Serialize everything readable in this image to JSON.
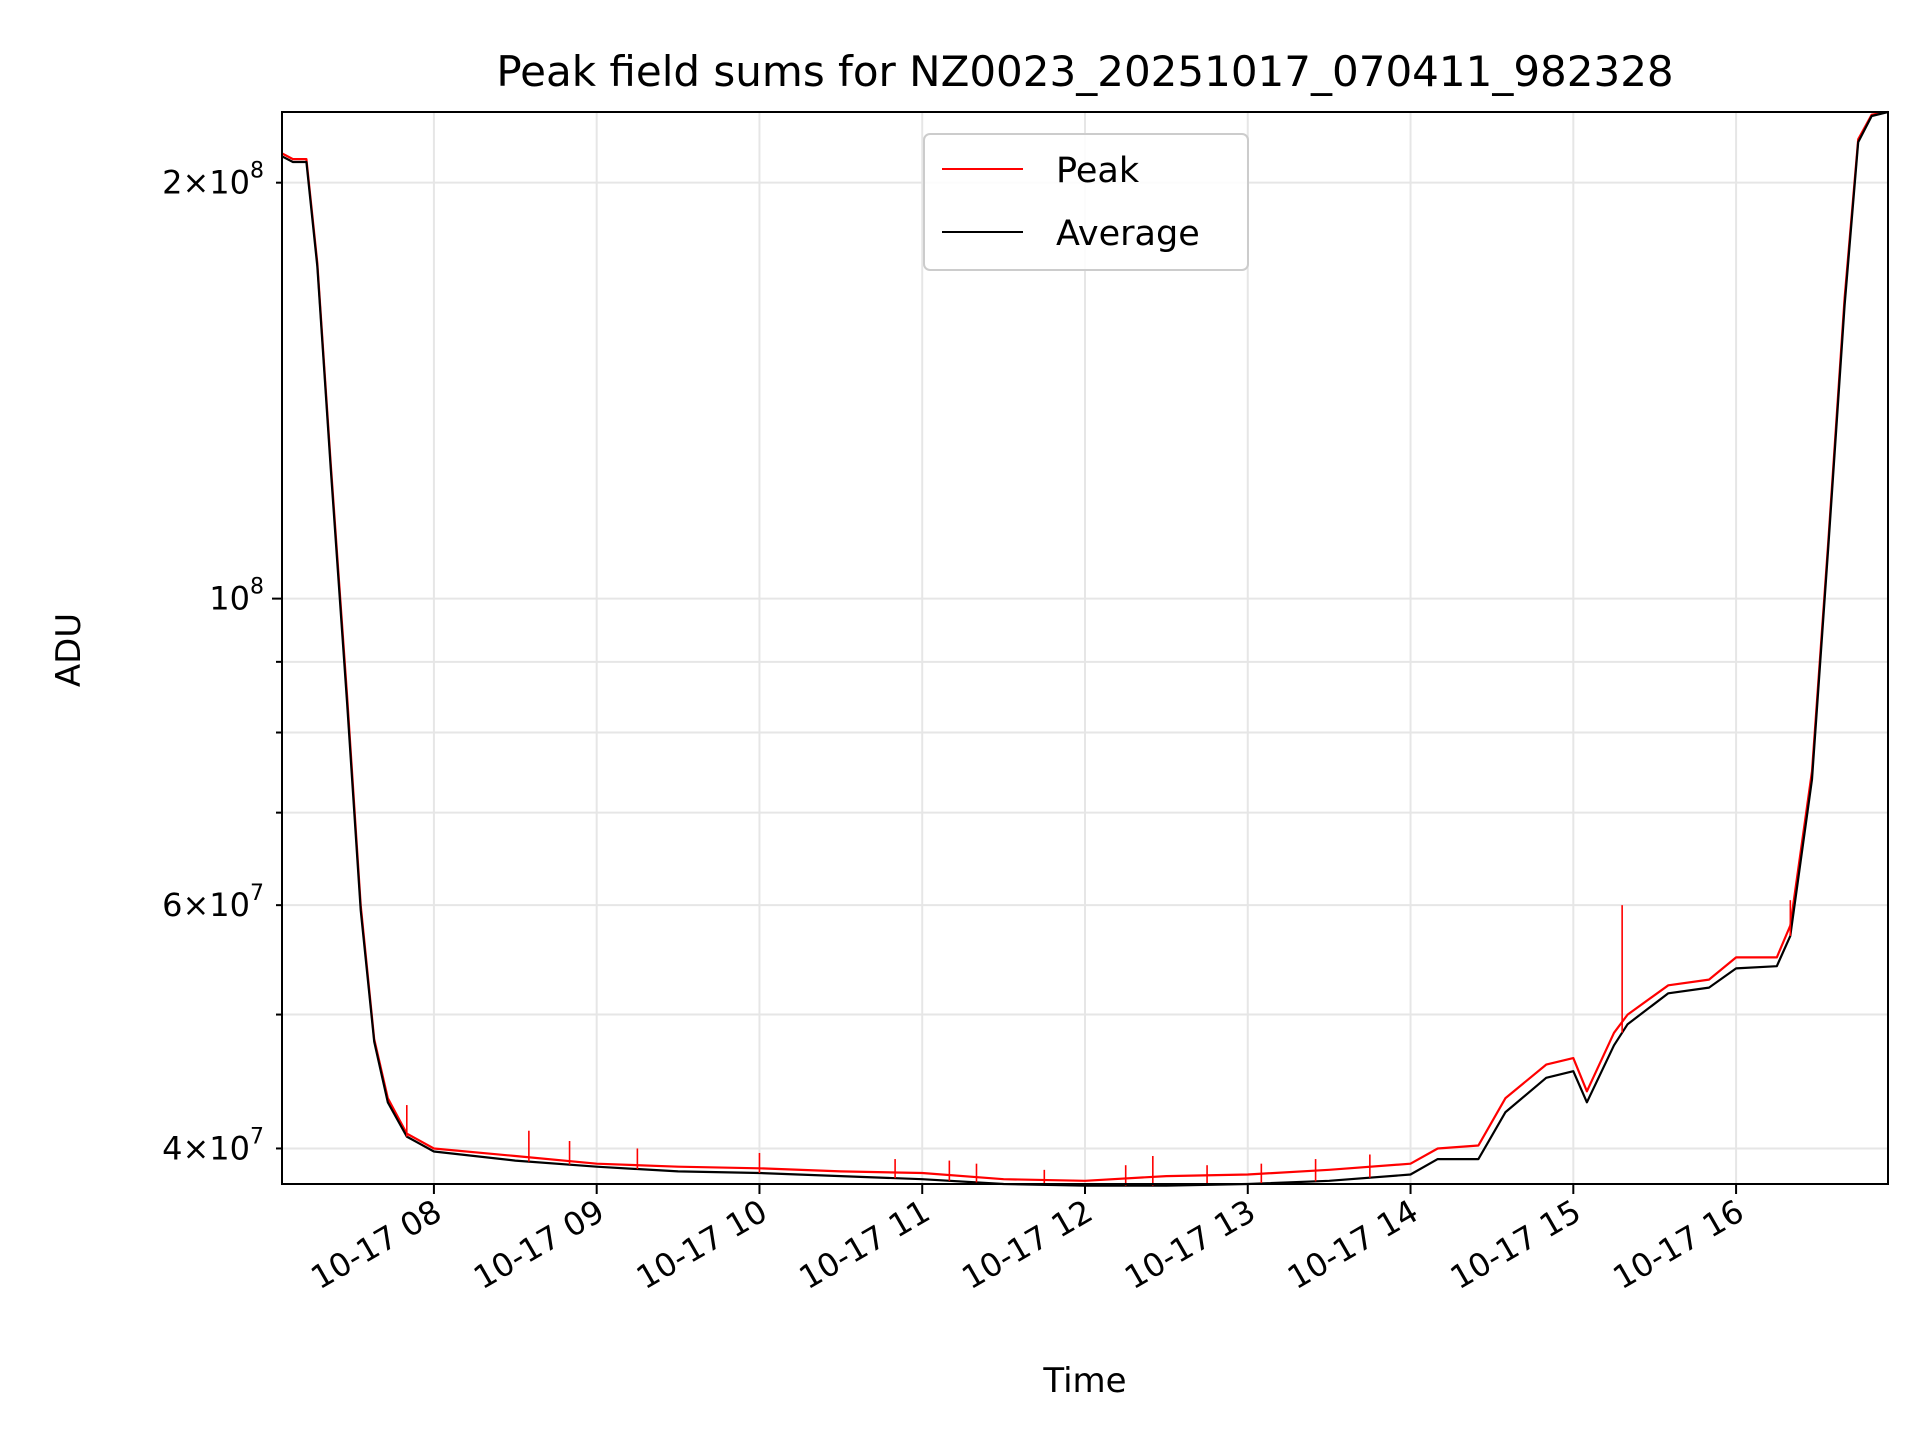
{
  "chart_data": {
    "type": "line",
    "title": "Peak field sums for NZ0023_20251017_070411_982328",
    "xlabel": "Time",
    "ylabel": "ADU",
    "y_scale": "log",
    "ylim": [
      37700000,
      225000000
    ],
    "xlim": [
      "2025-10-17 07:04",
      "2025-10-17 16:56"
    ],
    "grid": true,
    "legend_position": "upper center",
    "x_ticks": [
      {
        "value": "2025-10-17 08:00",
        "label": "10-17 08"
      },
      {
        "value": "2025-10-17 09:00",
        "label": "10-17 09"
      },
      {
        "value": "2025-10-17 10:00",
        "label": "10-17 10"
      },
      {
        "value": "2025-10-17 11:00",
        "label": "10-17 11"
      },
      {
        "value": "2025-10-17 12:00",
        "label": "10-17 12"
      },
      {
        "value": "2025-10-17 13:00",
        "label": "10-17 13"
      },
      {
        "value": "2025-10-17 14:00",
        "label": "10-17 14"
      },
      {
        "value": "2025-10-17 15:00",
        "label": "10-17 15"
      },
      {
        "value": "2025-10-17 16:00",
        "label": "10-17 16"
      }
    ],
    "y_major_ticks": [
      {
        "value": 100000000,
        "base": "10",
        "exp": "8",
        "coef": ""
      }
    ],
    "y_minor_ticks": [
      {
        "value": 40000000,
        "coef": "4",
        "base": "10",
        "exp": "7"
      },
      {
        "value": 60000000,
        "coef": "6",
        "base": "10",
        "exp": "7"
      },
      {
        "value": 200000000,
        "coef": "2",
        "base": "10",
        "exp": "8"
      }
    ],
    "y_unlabeled_minor_ticks": [
      50000000,
      70000000,
      80000000,
      90000000
    ],
    "series": [
      {
        "name": "Peak",
        "color": "#ff0000",
        "points": [
          [
            "2025-10-17 07:04",
            210000000
          ],
          [
            "2025-10-17 07:08",
            208000000
          ],
          [
            "2025-10-17 07:13",
            208000000
          ],
          [
            "2025-10-17 07:17",
            175000000
          ],
          [
            "2025-10-17 07:22",
            125000000
          ],
          [
            "2025-10-17 07:28",
            85000000
          ],
          [
            "2025-10-17 07:33",
            60000000
          ],
          [
            "2025-10-17 07:38",
            48000000
          ],
          [
            "2025-10-17 07:43",
            43500000
          ],
          [
            "2025-10-17 07:50",
            41000000
          ],
          [
            "2025-10-17 08:00",
            40000000
          ],
          [
            "2025-10-17 08:30",
            39500000
          ],
          [
            "2025-10-17 09:00",
            39000000
          ],
          [
            "2025-10-17 09:30",
            38800000
          ],
          [
            "2025-10-17 10:00",
            38700000
          ],
          [
            "2025-10-17 10:30",
            38500000
          ],
          [
            "2025-10-17 11:00",
            38400000
          ],
          [
            "2025-10-17 11:30",
            38000000
          ],
          [
            "2025-10-17 12:00",
            37900000
          ],
          [
            "2025-10-17 12:30",
            38200000
          ],
          [
            "2025-10-17 13:00",
            38300000
          ],
          [
            "2025-10-17 13:30",
            38600000
          ],
          [
            "2025-10-17 14:00",
            39000000
          ],
          [
            "2025-10-17 14:10",
            40000000
          ],
          [
            "2025-10-17 14:25",
            40200000
          ],
          [
            "2025-10-17 14:35",
            43500000
          ],
          [
            "2025-10-17 14:50",
            46000000
          ],
          [
            "2025-10-17 15:00",
            46500000
          ],
          [
            "2025-10-17 15:05",
            44000000
          ],
          [
            "2025-10-17 15:15",
            48500000
          ],
          [
            "2025-10-17 15:20",
            50000000
          ],
          [
            "2025-10-17 15:35",
            52500000
          ],
          [
            "2025-10-17 15:50",
            53000000
          ],
          [
            "2025-10-17 16:00",
            55000000
          ],
          [
            "2025-10-17 16:15",
            55000000
          ],
          [
            "2025-10-17 16:20",
            58000000
          ],
          [
            "2025-10-17 16:28",
            75000000
          ],
          [
            "2025-10-17 16:34",
            110000000
          ],
          [
            "2025-10-17 16:40",
            165000000
          ],
          [
            "2025-10-17 16:45",
            215000000
          ],
          [
            "2025-10-17 16:50",
            224000000
          ],
          [
            "2025-10-17 16:56",
            225000000
          ]
        ],
        "spikes": [
          [
            "2025-10-17 07:50",
            43000000
          ],
          [
            "2025-10-17 08:35",
            41200000
          ],
          [
            "2025-10-17 08:50",
            40500000
          ],
          [
            "2025-10-17 09:15",
            40000000
          ],
          [
            "2025-10-17 10:00",
            39700000
          ],
          [
            "2025-10-17 10:50",
            39300000
          ],
          [
            "2025-10-17 11:10",
            39200000
          ],
          [
            "2025-10-17 11:20",
            39000000
          ],
          [
            "2025-10-17 11:45",
            38600000
          ],
          [
            "2025-10-17 12:15",
            38900000
          ],
          [
            "2025-10-17 12:25",
            39500000
          ],
          [
            "2025-10-17 12:45",
            38900000
          ],
          [
            "2025-10-17 13:05",
            39000000
          ],
          [
            "2025-10-17 13:25",
            39300000
          ],
          [
            "2025-10-17 13:45",
            39600000
          ],
          [
            "2025-10-17 15:18",
            60000000
          ],
          [
            "2025-10-17 16:20",
            60500000
          ]
        ]
      },
      {
        "name": "Average",
        "color": "#000000",
        "points": [
          [
            "2025-10-17 07:04",
            209000000
          ],
          [
            "2025-10-17 07:08",
            207000000
          ],
          [
            "2025-10-17 07:13",
            207000000
          ],
          [
            "2025-10-17 07:17",
            174000000
          ],
          [
            "2025-10-17 07:22",
            124000000
          ],
          [
            "2025-10-17 07:28",
            84000000
          ],
          [
            "2025-10-17 07:33",
            59500000
          ],
          [
            "2025-10-17 07:38",
            47800000
          ],
          [
            "2025-10-17 07:43",
            43200000
          ],
          [
            "2025-10-17 07:50",
            40800000
          ],
          [
            "2025-10-17 08:00",
            39800000
          ],
          [
            "2025-10-17 08:30",
            39200000
          ],
          [
            "2025-10-17 09:00",
            38800000
          ],
          [
            "2025-10-17 09:30",
            38500000
          ],
          [
            "2025-10-17 10:00",
            38400000
          ],
          [
            "2025-10-17 10:30",
            38200000
          ],
          [
            "2025-10-17 11:00",
            38000000
          ],
          [
            "2025-10-17 11:30",
            37700000
          ],
          [
            "2025-10-17 12:00",
            37600000
          ],
          [
            "2025-10-17 12:30",
            37600000
          ],
          [
            "2025-10-17 13:00",
            37700000
          ],
          [
            "2025-10-17 13:30",
            37900000
          ],
          [
            "2025-10-17 14:00",
            38300000
          ],
          [
            "2025-10-17 14:10",
            39300000
          ],
          [
            "2025-10-17 14:25",
            39300000
          ],
          [
            "2025-10-17 14:35",
            42500000
          ],
          [
            "2025-10-17 14:50",
            45000000
          ],
          [
            "2025-10-17 15:00",
            45500000
          ],
          [
            "2025-10-17 15:05",
            43200000
          ],
          [
            "2025-10-17 15:15",
            47500000
          ],
          [
            "2025-10-17 15:20",
            49200000
          ],
          [
            "2025-10-17 15:35",
            51800000
          ],
          [
            "2025-10-17 15:50",
            52300000
          ],
          [
            "2025-10-17 16:00",
            54000000
          ],
          [
            "2025-10-17 16:15",
            54200000
          ],
          [
            "2025-10-17 16:20",
            57000000
          ],
          [
            "2025-10-17 16:28",
            74000000
          ],
          [
            "2025-10-17 16:34",
            109000000
          ],
          [
            "2025-10-17 16:40",
            163000000
          ],
          [
            "2025-10-17 16:45",
            214000000
          ],
          [
            "2025-10-17 16:50",
            223500000
          ],
          [
            "2025-10-17 16:56",
            225000000
          ]
        ]
      }
    ]
  }
}
